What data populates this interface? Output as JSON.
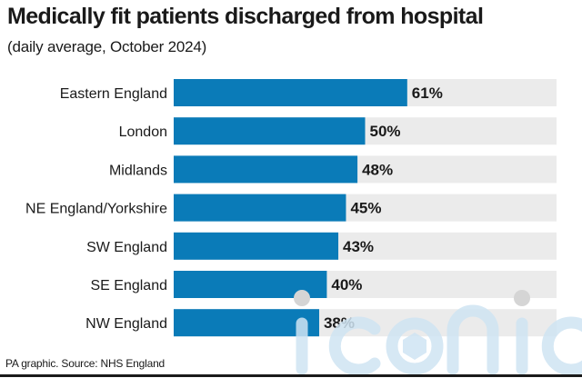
{
  "header": {
    "title": "Medically fit patients discharged from hospital",
    "subtitle": "(daily average, October 2024)"
  },
  "footer": {
    "source": "PA graphic. Source: NHS England"
  },
  "watermark": {
    "text": "iconic"
  },
  "colors": {
    "bar": "#0a7bb8",
    "track": "#ebebeb",
    "text": "#1a1a1a",
    "watermark": "#cfe4f3"
  },
  "chart_data": {
    "type": "bar",
    "orientation": "horizontal",
    "title": "Medically fit patients discharged from hospital",
    "subtitle": "(daily average, October 2024)",
    "categories": [
      "Eastern England",
      "London",
      "Midlands",
      "NE England/Yorkshire",
      "SW England",
      "SE England",
      "NW England"
    ],
    "values": [
      61,
      50,
      48,
      45,
      43,
      40,
      38
    ],
    "value_labels": [
      "61%",
      "50%",
      "48%",
      "45%",
      "43%",
      "40%",
      "38%"
    ],
    "unit": "%",
    "xlim": [
      0,
      100
    ],
    "grid": false,
    "legend": "none"
  }
}
